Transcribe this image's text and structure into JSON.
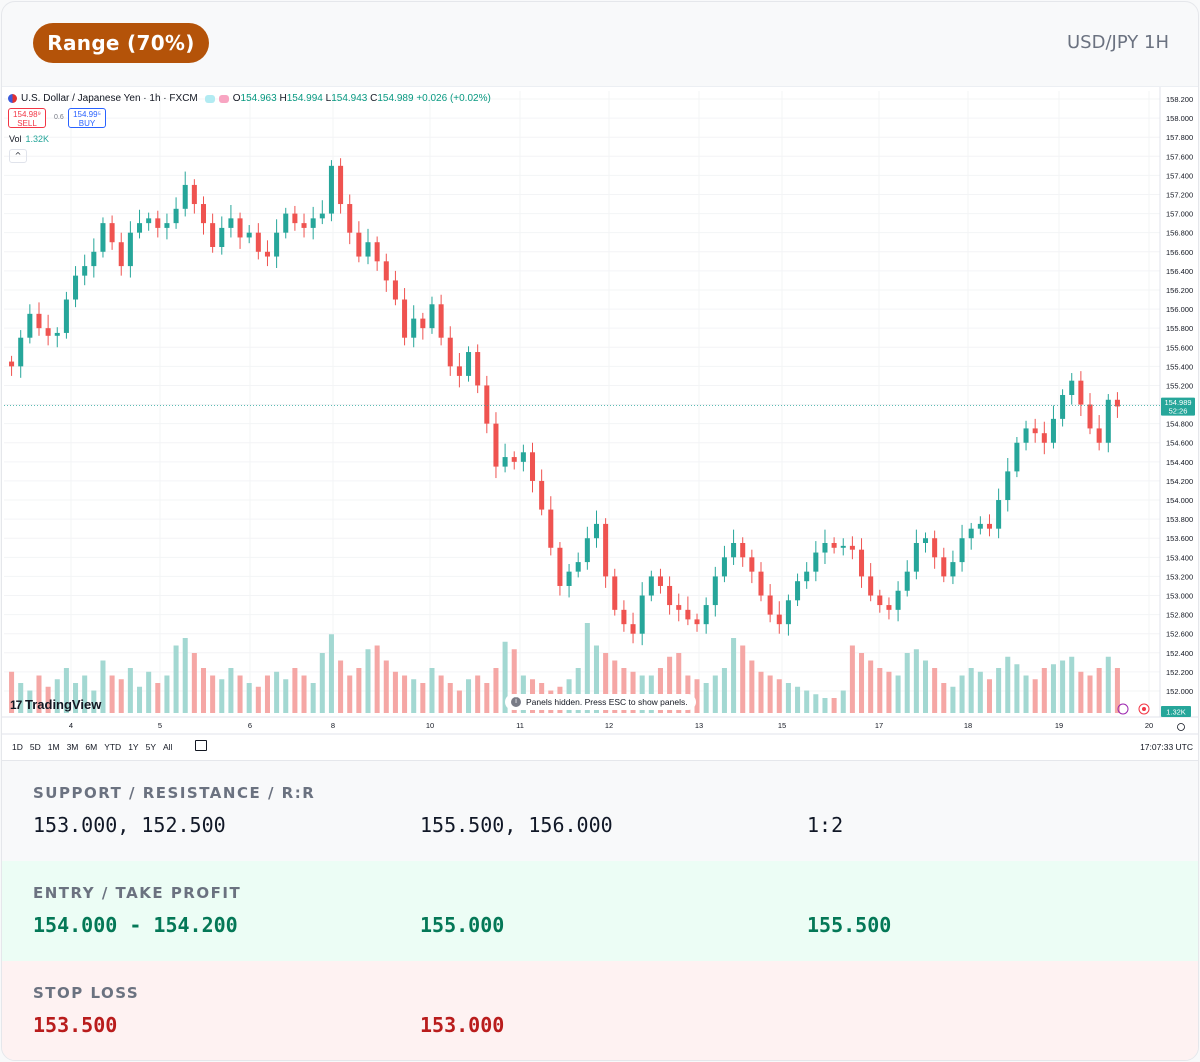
{
  "header": {
    "badge": "Range (70%)",
    "pair": "USD/JPY 1H"
  },
  "tv": {
    "symbol": "U.S. Dollar / Japanese Yen · 1h · FXCM",
    "open": "154.963",
    "high": "154.994",
    "low": "154.943",
    "close": "154.989",
    "change": "+0.026 (+0.02%)",
    "sell_price": "154.98⁹",
    "sell_label": "SELL",
    "spread": "0.6",
    "buy_price": "154.99⁵",
    "buy_label": "BUY",
    "vol_label": "Vol",
    "vol_value": "1.32K",
    "logo_text": "TradingView",
    "toast": "Panels hidden. Press ESC to show panels.",
    "ranges": [
      "1D",
      "5D",
      "1M",
      "3M",
      "6M",
      "YTD",
      "1Y",
      "5Y",
      "All"
    ],
    "time": "17:07:33 UTC",
    "price_tag": "154.989",
    "price_countdown": "52:26",
    "vol_tag": "1.32K",
    "price_axis": [
      "158.200",
      "158.000",
      "157.800",
      "157.600",
      "157.400",
      "157.200",
      "157.000",
      "156.800",
      "156.600",
      "156.400",
      "156.200",
      "156.000",
      "155.800",
      "155.600",
      "155.400",
      "155.200",
      "155.000",
      "154.800",
      "154.600",
      "154.400",
      "154.200",
      "154.000",
      "153.800",
      "153.600",
      "153.400",
      "153.200",
      "153.000",
      "152.800",
      "152.600",
      "152.400",
      "152.200",
      "152.000"
    ],
    "date_axis": [
      "4",
      "5",
      "6",
      "8",
      "10",
      "11",
      "12",
      "13",
      "15",
      "17",
      "18",
      "19",
      "20"
    ],
    "colors": {
      "up": "#26a69a",
      "down": "#ef5350",
      "up_vol": "#a3d8d2",
      "down_vol": "#f5a7a5"
    }
  },
  "chart_data": {
    "type": "candlestick",
    "ylim": [
      151.8,
      158.3
    ],
    "current_price": 154.989,
    "close_series": [
      155.4,
      155.7,
      155.95,
      155.8,
      155.72,
      155.75,
      156.1,
      156.35,
      156.45,
      156.6,
      156.9,
      156.7,
      156.45,
      156.8,
      156.9,
      156.95,
      156.85,
      156.9,
      157.05,
      157.3,
      157.1,
      156.9,
      156.65,
      156.85,
      156.95,
      156.75,
      156.8,
      156.6,
      156.55,
      156.8,
      157.0,
      156.9,
      156.85,
      156.95,
      157.0,
      157.5,
      157.1,
      156.8,
      156.55,
      156.7,
      156.5,
      156.3,
      156.1,
      155.7,
      155.9,
      155.8,
      156.05,
      155.7,
      155.4,
      155.3,
      155.55,
      155.2,
      154.8,
      154.35,
      154.45,
      154.4,
      154.5,
      154.2,
      153.9,
      153.5,
      153.1,
      153.25,
      153.35,
      153.6,
      153.75,
      153.2,
      152.85,
      152.7,
      152.6,
      153.0,
      153.2,
      153.1,
      152.9,
      152.85,
      152.75,
      152.7,
      152.9,
      153.2,
      153.4,
      153.55,
      153.4,
      153.25,
      153.0,
      152.8,
      152.7,
      152.95,
      153.15,
      153.25,
      153.45,
      153.55,
      153.5,
      153.52,
      153.48,
      153.2,
      153.0,
      152.9,
      152.85,
      153.05,
      153.25,
      153.55,
      153.6,
      153.4,
      153.2,
      153.35,
      153.6,
      153.7,
      153.75,
      153.7,
      154.0,
      154.3,
      154.6,
      154.75,
      154.7,
      154.6,
      154.85,
      155.1,
      155.25,
      155.0,
      154.75,
      154.6,
      155.05,
      154.98
    ],
    "volume_series": [
      0.55,
      0.4,
      0.3,
      0.5,
      0.35,
      0.45,
      0.6,
      0.4,
      0.5,
      0.3,
      0.7,
      0.5,
      0.45,
      0.6,
      0.35,
      0.55,
      0.4,
      0.5,
      0.9,
      1.0,
      0.8,
      0.6,
      0.5,
      0.45,
      0.6,
      0.5,
      0.4,
      0.35,
      0.5,
      0.55,
      0.45,
      0.6,
      0.5,
      0.4,
      0.8,
      1.05,
      0.7,
      0.5,
      0.6,
      0.85,
      0.9,
      0.7,
      0.55,
      0.5,
      0.45,
      0.4,
      0.6,
      0.5,
      0.4,
      0.3,
      0.45,
      0.5,
      0.4,
      0.6,
      0.95,
      0.85,
      0.5,
      0.45,
      0.4,
      0.3,
      0.35,
      0.45,
      0.6,
      1.2,
      0.9,
      0.8,
      0.7,
      0.6,
      0.55,
      0.5,
      0.5,
      0.6,
      0.75,
      0.8,
      0.5,
      0.45,
      0.4,
      0.5,
      0.6,
      1.0,
      0.9,
      0.7,
      0.55,
      0.5,
      0.45,
      0.4,
      0.35,
      0.3,
      0.25,
      0.2,
      0.2,
      0.3,
      0.9,
      0.8,
      0.7,
      0.6,
      0.55,
      0.5,
      0.8,
      0.85,
      0.7,
      0.6,
      0.4,
      0.35,
      0.5,
      0.6,
      0.55,
      0.45,
      0.6,
      0.75,
      0.65,
      0.5,
      0.45,
      0.6,
      0.65,
      0.7,
      0.75,
      0.55,
      0.5,
      0.6,
      0.75,
      0.6
    ]
  },
  "levels": {
    "title": "SUPPORT / RESISTANCE / R:R",
    "support": "153.000, 152.500",
    "resistance": "155.500, 156.000",
    "rr": "1:2"
  },
  "entry": {
    "title": "ENTRY / TAKE PROFIT",
    "entry": "154.000 - 154.200",
    "tp1": "155.000",
    "tp2": "155.500"
  },
  "stop": {
    "title": "STOP LOSS",
    "sl1": "153.500",
    "sl2": "153.000"
  }
}
